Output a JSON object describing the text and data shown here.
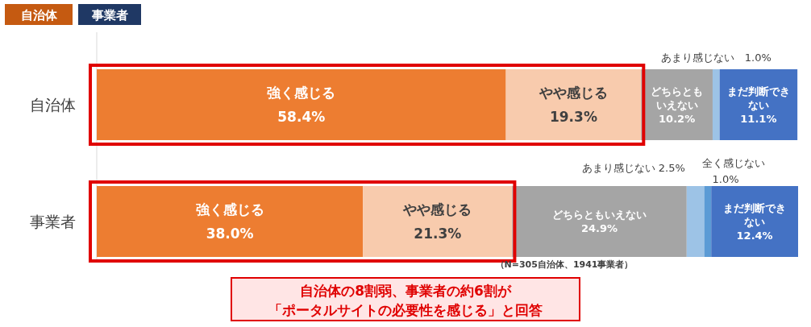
{
  "chart_data": {
    "type": "bar",
    "orientation": "horizontal",
    "stacked": true,
    "categories": [
      "自治体",
      "事業者"
    ],
    "series": [
      {
        "name": "強く感じる",
        "color": "#ed7d31",
        "values": [
          58.4,
          38.0
        ],
        "value_labels": [
          "58.4%",
          "38.0%"
        ]
      },
      {
        "name": "やや感じる",
        "color": "#f8cbad",
        "values": [
          19.3,
          21.3
        ],
        "value_labels": [
          "19.3%",
          "21.3%"
        ]
      },
      {
        "name": "どちらともいえない",
        "color": "#a5a5a5",
        "values": [
          10.2,
          24.9
        ],
        "value_labels": [
          "10.2%",
          "24.9%"
        ]
      },
      {
        "name": "あまり感じない",
        "color": "#9dc3e6",
        "values": [
          1.0,
          2.5
        ],
        "value_labels": [
          "1.0%",
          "2.5%"
        ]
      },
      {
        "name": "全く感じない",
        "color": "#5b9bd5",
        "values": [
          null,
          1.0
        ],
        "value_labels": [
          null,
          "1.0%"
        ]
      },
      {
        "name": "まだ判断できない",
        "color": "#4472c4",
        "values": [
          11.1,
          12.4
        ],
        "value_labels": [
          "11.1%",
          "12.4%"
        ]
      }
    ],
    "annotations": [
      "自治体",
      "事業者",
      "（N=305自治体、1941事業者）",
      "自治体の8割弱、事業者の約6割が",
      "「ポータルサイトの必要性を感じる」と回答"
    ]
  }
}
